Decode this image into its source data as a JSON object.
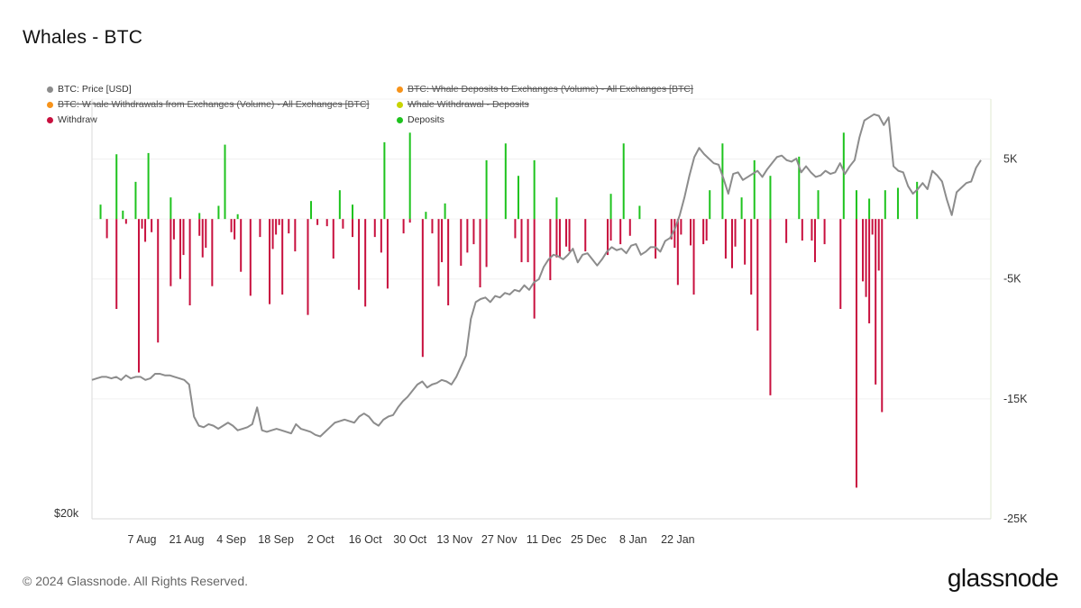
{
  "header": {
    "title": "Whales - BTC"
  },
  "legend": [
    {
      "label": "BTC: Price [USD]",
      "color": "#8c8c8c",
      "visible": true
    },
    {
      "label": "BTC: Whale Deposits to Exchanges (Volume) - All Exchanges [BTC]",
      "color": "#f7931a",
      "visible": false
    },
    {
      "label": "BTC: Whale Withdrawals from Exchanges (Volume) - All Exchanges [BTC]",
      "color": "#f7931a",
      "visible": false
    },
    {
      "label": "Whale Withdrawal - Deposits",
      "color": "#c8d400",
      "visible": false
    },
    {
      "label": "Withdraw",
      "color": "#c8103e",
      "visible": true
    },
    {
      "label": "Deposits",
      "color": "#1ec31e",
      "visible": true
    }
  ],
  "footer": {
    "copyright": "© 2024 Glassnode. All Rights Reserved.",
    "brand": "glassnode"
  },
  "chart_data": {
    "type": "bar",
    "x_ticks": [
      "7 Aug",
      "21 Aug",
      "4 Sep",
      "18 Sep",
      "2 Oct",
      "16 Oct",
      "30 Oct",
      "13 Nov",
      "27 Nov",
      "11 Dec",
      "25 Dec",
      "8 Jan",
      "22 Jan"
    ],
    "x_tick_index": [
      14,
      28,
      42,
      56,
      70,
      84,
      98,
      112,
      126,
      140,
      154,
      168,
      182
    ],
    "y_left": {
      "ticks": [
        "$20k"
      ]
    },
    "y_right": {
      "ticks": [
        "5K",
        "-5K",
        "-15K",
        "-25K"
      ],
      "tick_values": [
        5000,
        -5000,
        -15000,
        -25000
      ],
      "range": [
        -25000,
        10000
      ]
    },
    "colors": {
      "deposits": "#1ec31e",
      "withdraw": "#c8103e",
      "price": "#8c8c8c"
    },
    "series": [
      {
        "name": "Deposits",
        "values": [
          0,
          1200,
          0,
          0,
          0,
          0,
          5400,
          0,
          700,
          0,
          0,
          0,
          3100,
          0,
          0,
          0,
          5500,
          0,
          0,
          0,
          0,
          0,
          0,
          1800,
          0,
          0,
          0,
          0,
          0,
          0,
          0,
          0,
          500,
          0,
          0,
          0,
          0,
          0,
          1100,
          0,
          6200,
          0,
          0,
          0,
          400,
          0,
          0,
          0,
          0,
          0,
          0,
          0,
          0,
          0,
          0,
          0,
          0,
          0,
          0,
          0,
          0,
          0,
          0,
          0,
          0,
          0,
          0,
          1500,
          0,
          0,
          0,
          0,
          0,
          0,
          0,
          0,
          2400,
          0,
          0,
          0,
          1200,
          0,
          0,
          0,
          0,
          0,
          0,
          0,
          0,
          0,
          6400,
          0,
          0,
          0,
          0,
          0,
          0,
          0,
          7200,
          0,
          0,
          0,
          0,
          600,
          0,
          0,
          0,
          0,
          0,
          1300,
          0,
          0,
          0,
          0,
          0,
          0,
          0,
          0,
          0,
          0,
          0,
          0,
          4900,
          0,
          0,
          0,
          0,
          0,
          6300,
          0,
          0,
          0,
          3600,
          0,
          0,
          0,
          0,
          4900,
          0,
          0,
          0,
          0,
          0,
          0,
          1800,
          0,
          0,
          0,
          0,
          0,
          0,
          0,
          0,
          0,
          0,
          0,
          0,
          0,
          0,
          0,
          0,
          2100,
          0,
          0,
          0,
          6300,
          0,
          0,
          0,
          0,
          1100,
          0,
          0,
          0,
          0,
          0,
          0,
          0,
          0,
          0,
          0,
          0,
          0,
          0,
          0,
          0,
          0,
          0,
          0,
          0,
          0,
          0,
          2400,
          0,
          0,
          0,
          6300,
          0,
          0,
          0,
          0,
          0,
          1800,
          0,
          0,
          0,
          4900,
          0,
          0,
          0,
          0,
          3600,
          0,
          0,
          0,
          0,
          0,
          0,
          0,
          0,
          5200,
          0,
          0,
          0,
          0,
          0,
          2400,
          0,
          0,
          0,
          0,
          0,
          0,
          0,
          7200,
          0,
          0,
          0,
          2400,
          0,
          0,
          0,
          1700,
          0,
          0,
          0,
          0,
          2400,
          0,
          0,
          0,
          2600,
          0,
          0,
          0,
          0,
          0,
          3100,
          0,
          0,
          0,
          0,
          0,
          0,
          0,
          0,
          0,
          0,
          0,
          0,
          0,
          0,
          0,
          0,
          0,
          0,
          0,
          0,
          0,
          0
        ]
      },
      {
        "name": "Withdraw",
        "values": [
          0,
          0,
          0,
          -1600,
          0,
          0,
          -7500,
          0,
          0,
          -400,
          0,
          0,
          0,
          -12800,
          -800,
          -1900,
          0,
          -1100,
          0,
          -10300,
          0,
          0,
          0,
          -5600,
          -1700,
          0,
          -5000,
          -3000,
          0,
          -7200,
          0,
          0,
          -1400,
          -3200,
          -2400,
          0,
          -5600,
          0,
          0,
          0,
          0,
          0,
          -1100,
          -1700,
          0,
          -4400,
          0,
          0,
          -6400,
          0,
          0,
          -1500,
          0,
          0,
          -7100,
          -2500,
          -1300,
          -500,
          -6300,
          0,
          -1200,
          0,
          -2700,
          0,
          0,
          0,
          -8000,
          0,
          0,
          -500,
          0,
          0,
          -600,
          0,
          -3300,
          0,
          0,
          -800,
          0,
          0,
          -1500,
          0,
          -5900,
          0,
          -7300,
          0,
          0,
          -1500,
          0,
          -2800,
          0,
          -5800,
          0,
          0,
          0,
          0,
          -1200,
          0,
          -300,
          0,
          0,
          0,
          -11500,
          0,
          0,
          -1200,
          0,
          -5600,
          -3600,
          0,
          -7200,
          0,
          0,
          0,
          -3900,
          0,
          -2800,
          0,
          -2100,
          0,
          -5700,
          0,
          -4000,
          0,
          0,
          0,
          0,
          0,
          0,
          0,
          0,
          -1600,
          0,
          -3600,
          0,
          -3600,
          0,
          -8300,
          0,
          0,
          0,
          0,
          -5100,
          0,
          -3200,
          -3200,
          0,
          -2300,
          -2700,
          0,
          0,
          0,
          0,
          -2700,
          0,
          0,
          0,
          0,
          0,
          0,
          -3000,
          -1800,
          0,
          0,
          -2100,
          0,
          0,
          -1400,
          0,
          0,
          0,
          0,
          0,
          0,
          0,
          -3300,
          0,
          0,
          0,
          0,
          -1700,
          -2400,
          -5500,
          -1300,
          0,
          0,
          -2200,
          -6300,
          0,
          0,
          -2100,
          -1800,
          0,
          0,
          0,
          0,
          0,
          -3300,
          0,
          -4100,
          -2300,
          0,
          0,
          -3800,
          0,
          -6300,
          0,
          -9300,
          0,
          0,
          0,
          -14700,
          0,
          0,
          0,
          0,
          -2000,
          0,
          0,
          0,
          0,
          -1800,
          0,
          0,
          -1800,
          -3600,
          0,
          0,
          -2100,
          0,
          0,
          0,
          0,
          -7500,
          0,
          0,
          0,
          0,
          -22400,
          0,
          -5200,
          -6500,
          -8700,
          -1300,
          -13800,
          -4300,
          -16100,
          0,
          0
        ]
      },
      {
        "name": "BTC: Price [USD]",
        "values": [
          29100,
          29200,
          29300,
          29300,
          29200,
          29300,
          29100,
          29400,
          29200,
          29300,
          29300,
          29100,
          29200,
          29500,
          29500,
          29400,
          29400,
          29300,
          29200,
          29100,
          28800,
          26700,
          26100,
          26000,
          26200,
          26100,
          25900,
          26100,
          26300,
          26100,
          25800,
          25900,
          26000,
          26200,
          27300,
          25800,
          25700,
          25800,
          25900,
          25800,
          25700,
          25600,
          26200,
          25900,
          25800,
          25700,
          25500,
          25400,
          25700,
          26000,
          26300,
          26400,
          26500,
          26400,
          26300,
          26700,
          26900,
          26700,
          26300,
          26100,
          26500,
          26700,
          26800,
          27300,
          27700,
          28000,
          28400,
          28800,
          29000,
          28600,
          28800,
          28900,
          29100,
          29000,
          28800,
          29300,
          30000,
          30700,
          33100,
          34200,
          34400,
          34500,
          34200,
          34600,
          34500,
          34800,
          34700,
          35000,
          34900,
          35300,
          35000,
          35500,
          35700,
          36500,
          37000,
          37300,
          37200,
          37000,
          37300,
          37700,
          36800,
          37300,
          37400,
          37000,
          36600,
          37000,
          37500,
          37800,
          37600,
          37700,
          37400,
          37900,
          38000,
          37300,
          37500,
          37800,
          37800,
          37500,
          38200,
          38400,
          39000,
          39900,
          41100,
          42500,
          43700,
          44300,
          43900,
          43600,
          43300,
          43200,
          42300,
          41300,
          42600,
          42700,
          42200,
          42400,
          42600,
          42800,
          42400,
          42900,
          43300,
          43700,
          43800,
          43500,
          43400,
          43600,
          42700,
          43100,
          42700,
          42400,
          42500,
          42800,
          42600,
          42700,
          43300,
          42600,
          43100,
          43500,
          45000,
          46100,
          46300,
          46500,
          46400,
          45800,
          46300,
          43100,
          42800,
          42700,
          41800,
          41300,
          41600,
          42000,
          41600,
          42800,
          42500,
          42100,
          40900,
          39900,
          41400,
          41700,
          42000,
          42100,
          43000,
          43500
        ]
      }
    ]
  }
}
